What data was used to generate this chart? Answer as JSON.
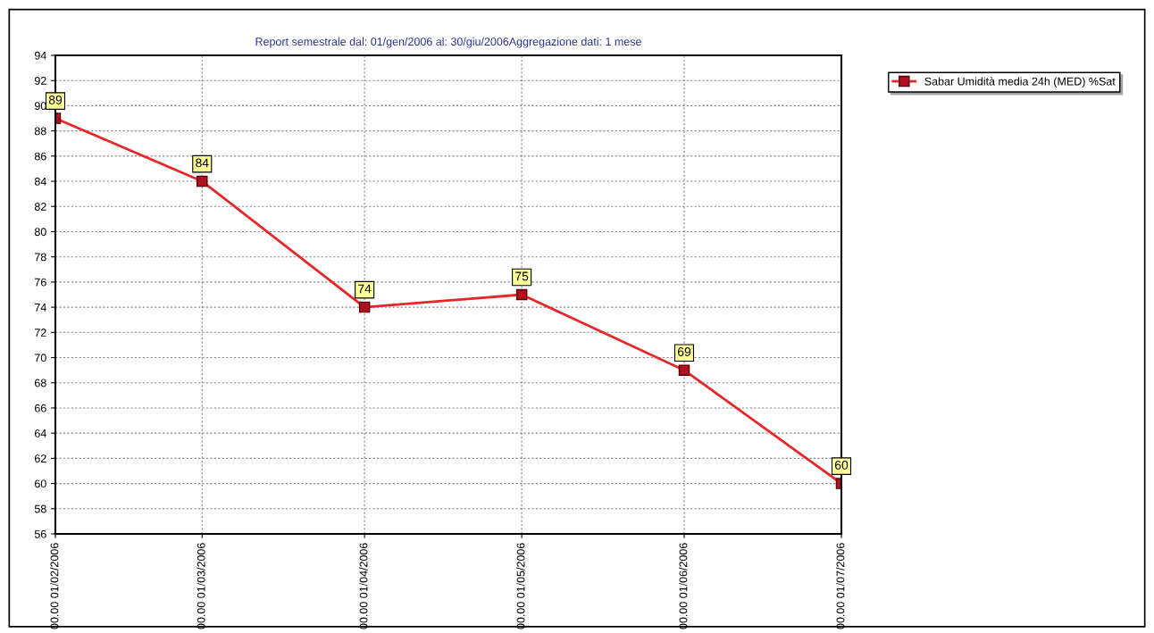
{
  "chart_data": {
    "type": "line",
    "title": "Report semestrale dal: 01/gen/2006 al: 30/giu/2006Aggregazione dati: 1 mese",
    "x": [
      "2006-02-01",
      "2006-03-01",
      "2006-04-01",
      "2006-05-01",
      "2006-06-01",
      "2006-07-01"
    ],
    "series": [
      {
        "name": "Sabar Umidità media 24h (MED) %Sat",
        "color": "#e8262a",
        "values": [
          89,
          84,
          74,
          75,
          69,
          60
        ]
      }
    ],
    "xlim": [
      "2006-02-01",
      "2006-07-01"
    ],
    "xticks": [
      {
        "value": "2006-02-01",
        "label": "00.00 01/02/2006"
      },
      {
        "value": "2006-03-01",
        "label": "00.00 01/03/2006"
      },
      {
        "value": "2006-04-01",
        "label": "00.00 01/04/2006"
      },
      {
        "value": "2006-05-01",
        "label": "00.00 01/05/2006"
      },
      {
        "value": "2006-06-01",
        "label": "00.00 01/06/2006"
      },
      {
        "value": "2006-07-01",
        "label": "00.00 01/07/2006"
      }
    ],
    "ylim": [
      56,
      94
    ],
    "yticks": [
      56,
      58,
      60,
      62,
      64,
      66,
      68,
      70,
      72,
      74,
      76,
      78,
      80,
      82,
      84,
      86,
      88,
      90,
      92,
      94
    ],
    "grid": true,
    "legend": "top right",
    "marker": "square",
    "line_style": "solid",
    "data_labels": true
  }
}
